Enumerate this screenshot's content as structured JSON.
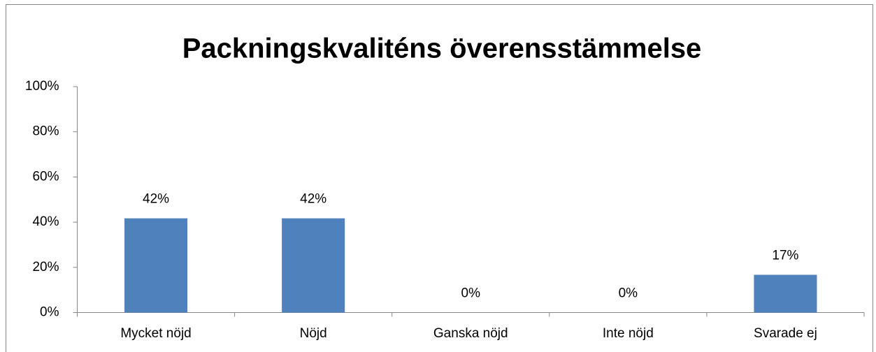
{
  "chart_data": {
    "type": "bar",
    "title": "Packningskvaliténs överensstämmelse",
    "categories": [
      "Mycket nöjd",
      "Nöjd",
      "Ganska nöjd",
      "Inte nöjd",
      "Svarade ej"
    ],
    "values": [
      41.7,
      41.7,
      0,
      0,
      16.7
    ],
    "value_labels": [
      "42%",
      "42%",
      "0%",
      "0%",
      "17%"
    ],
    "color": "#4f81bd",
    "ylim": [
      0,
      100
    ],
    "yticks": [
      {
        "value": 0,
        "label": "0%"
      },
      {
        "value": 20,
        "label": "20%"
      },
      {
        "value": 40,
        "label": "40%"
      },
      {
        "value": 60,
        "label": "60%"
      },
      {
        "value": 80,
        "label": "80%"
      },
      {
        "value": 100,
        "label": "100%"
      }
    ],
    "grid": false
  }
}
